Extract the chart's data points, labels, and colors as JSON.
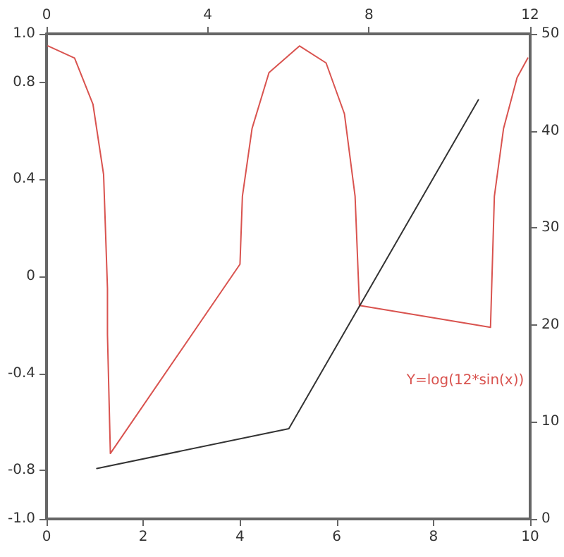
{
  "chart_data": {
    "type": "line",
    "xlim": [
      0,
      10
    ],
    "xticks": [
      0,
      2,
      4,
      6,
      8,
      10
    ],
    "x2lim": [
      0,
      12
    ],
    "x2ticks": [
      0,
      4,
      8,
      12
    ],
    "ylim": [
      -1,
      1
    ],
    "yticks": [
      {
        "value": -1,
        "label": "-1.0"
      },
      -0.8,
      -0.4,
      0,
      0.4,
      0.8,
      {
        "value": 1,
        "label": "1.0"
      }
    ],
    "y2lim": [
      0,
      50
    ],
    "y2ticks": [
      0,
      10,
      20,
      30,
      40,
      50
    ],
    "grid": false,
    "marker": "none",
    "line_style": "solid",
    "annotations": [
      "Y=log(12*sin(x))"
    ],
    "series": [
      {
        "color": "#d9534f",
        "x": [
          0.03,
          0.58,
          0.96,
          1.18,
          1.26,
          1.26,
          1.32,
          4.0,
          4.05,
          4.25,
          4.6,
          5.23,
          5.78,
          6.16,
          6.38,
          6.47,
          9.18,
          9.26,
          9.45,
          9.73,
          9.95
        ],
        "values": [
          0.95,
          0.9,
          0.71,
          0.42,
          -0.05,
          -0.24,
          -0.73,
          0.05,
          0.33,
          0.61,
          0.84,
          0.95,
          0.88,
          0.67,
          0.33,
          -0.12,
          -0.21,
          0.33,
          0.61,
          0.82,
          0.9
        ]
      },
      {
        "color": "#333333",
        "axis": "y2",
        "x": [
          1.04,
          5.01,
          8.93
        ],
        "values": [
          5.2,
          9.3,
          43.2
        ]
      }
    ]
  }
}
